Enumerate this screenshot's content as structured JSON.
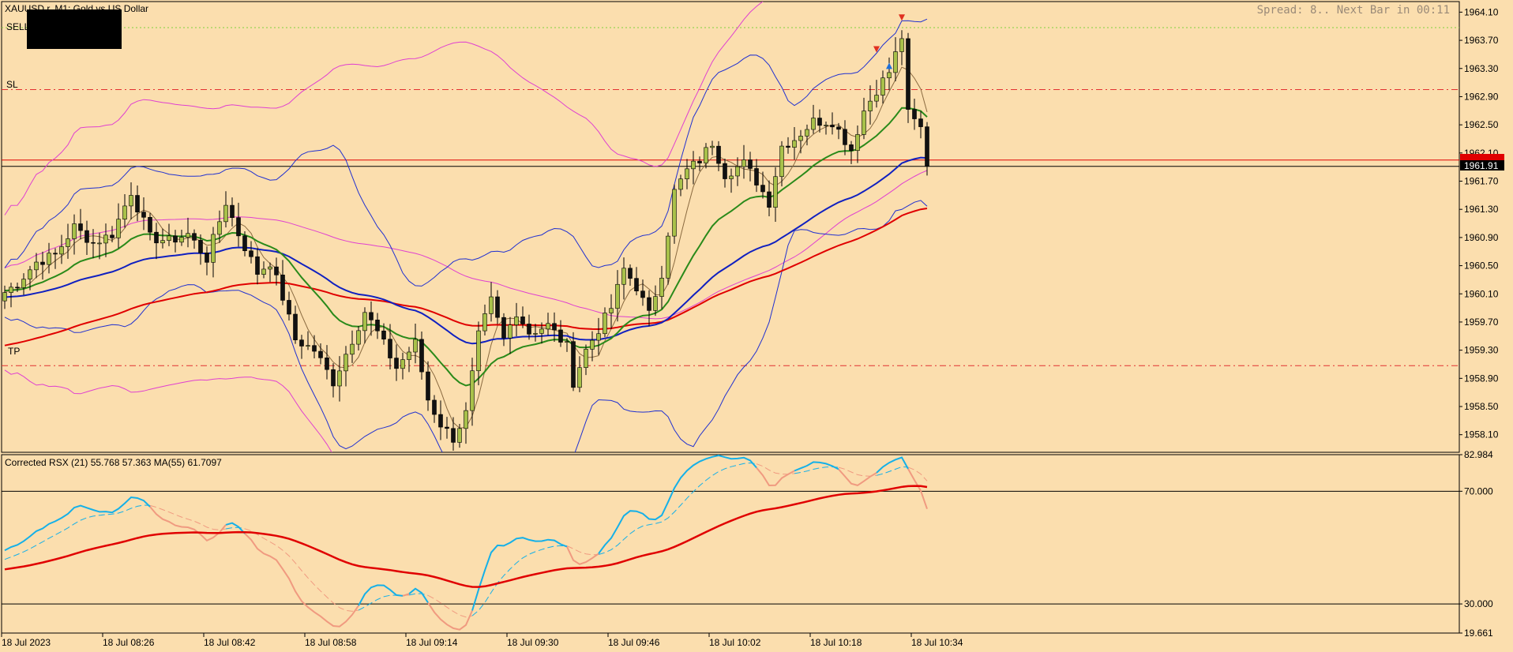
{
  "header": {
    "symbol_title": "XAUUSD.r, M1:  Gold vs US Dollar",
    "spread_text": "Spread: 8.. Next Bar in 00:11"
  },
  "levels": {
    "sell": {
      "label": "SELL",
      "price": 1963.88,
      "color": "#7FD23C"
    },
    "sl": {
      "label": "SL",
      "price": 1963.0,
      "color": "#E23030"
    },
    "tp": {
      "label": "TP",
      "price": 1959.08,
      "color": "#E23030"
    },
    "bid": {
      "price": 1962.0,
      "color": "#E00000"
    },
    "ask": {
      "price": 1961.91,
      "label": "1961.91",
      "color": "#000000"
    }
  },
  "colors": {
    "background": "#FBDEAE",
    "bull_candle": "#A8C14A",
    "bear_candle": "#111111",
    "sma_thin": "#8A6A40",
    "ma_green": "#2A8A1A",
    "ma_blue": "#1020C0",
    "ma_red": "#E00000",
    "bb_magenta": "#E040D0",
    "bb_blue": "#2030D0",
    "rsx_blue": "#15B0E8",
    "rsx_salmon": "#F09A80"
  },
  "chart_data": [
    {
      "type": "candlestick",
      "name": "XAUUSD.r M1",
      "ylim": [
        1957.85,
        1964.25
      ],
      "y_ticks": [
        "1964.10",
        "1963.70",
        "1963.30",
        "1962.90",
        "1962.50",
        "1962.10",
        "1961.70",
        "1961.30",
        "1960.90",
        "1960.50",
        "1960.10",
        "1959.70",
        "1959.30",
        "1958.90",
        "1958.50",
        "1958.10"
      ],
      "x_ticks": [
        "18 Jul 2023",
        "18 Jul 08:26",
        "18 Jul 08:42",
        "18 Jul 08:58",
        "18 Jul 09:14",
        "18 Jul 09:30",
        "18 Jul 09:46",
        "18 Jul 10:02",
        "18 Jul 10:18",
        "18 Jul 10:34"
      ],
      "arrows": [
        {
          "bar": 138,
          "price": 1963.55,
          "dir": "down",
          "color": "#E03020"
        },
        {
          "bar": 140,
          "price": 1963.36,
          "dir": "up",
          "color": "#1E6FD8"
        },
        {
          "bar": 142,
          "price": 1964.0,
          "dir": "down",
          "color": "#E03020"
        }
      ],
      "keypoints": [
        [
          0,
          1960.12
        ],
        [
          2,
          1960.25
        ],
        [
          5,
          1960.55
        ],
        [
          8,
          1960.65
        ],
        [
          11,
          1961.05
        ],
        [
          14,
          1960.82
        ],
        [
          17,
          1960.95
        ],
        [
          20,
          1961.55
        ],
        [
          23,
          1960.9
        ],
        [
          26,
          1960.85
        ],
        [
          29,
          1960.95
        ],
        [
          32,
          1960.6
        ],
        [
          35,
          1961.4
        ],
        [
          37,
          1960.95
        ],
        [
          40,
          1960.4
        ],
        [
          42,
          1960.55
        ],
        [
          44,
          1960.05
        ],
        [
          46,
          1959.45
        ],
        [
          49,
          1959.3
        ],
        [
          52,
          1958.85
        ],
        [
          55,
          1959.45
        ],
        [
          57,
          1959.85
        ],
        [
          59,
          1959.55
        ],
        [
          62,
          1959.05
        ],
        [
          65,
          1959.4
        ],
        [
          67,
          1958.6
        ],
        [
          69,
          1958.25
        ],
        [
          71,
          1958.05
        ],
        [
          73,
          1958.4
        ],
        [
          75,
          1959.5
        ],
        [
          77,
          1960.0
        ],
        [
          79,
          1959.45
        ],
        [
          81,
          1959.85
        ],
        [
          83,
          1959.55
        ],
        [
          86,
          1959.65
        ],
        [
          89,
          1959.35
        ],
        [
          90,
          1958.85
        ],
        [
          92,
          1959.3
        ],
        [
          94,
          1959.6
        ],
        [
          96,
          1959.9
        ],
        [
          98,
          1960.45
        ],
        [
          100,
          1960.2
        ],
        [
          102,
          1959.8
        ],
        [
          104,
          1960.4
        ],
        [
          106,
          1961.55
        ],
        [
          108,
          1961.85
        ],
        [
          110,
          1962.0
        ],
        [
          112,
          1962.25
        ],
        [
          114,
          1961.8
        ],
        [
          117,
          1961.95
        ],
        [
          119,
          1961.7
        ],
        [
          121,
          1961.4
        ],
        [
          123,
          1962.2
        ],
        [
          125,
          1962.3
        ],
        [
          128,
          1962.55
        ],
        [
          131,
          1962.55
        ],
        [
          134,
          1962.15
        ],
        [
          136,
          1962.7
        ],
        [
          138,
          1963.0
        ],
        [
          140,
          1963.25
        ],
        [
          142,
          1963.75
        ],
        [
          143,
          1962.65
        ],
        [
          145,
          1962.45
        ],
        [
          146,
          1961.9
        ]
      ],
      "price_labels": {
        "bid": "",
        "ask": "1961.91"
      }
    },
    {
      "type": "line",
      "name": "Corrected RSX (21) 55.768 57.363 MA(55) 61.7097",
      "ylim": [
        19.661,
        82.984
      ],
      "y_ticks": [
        "82.984",
        "70.000",
        "30.000",
        "19.661"
      ],
      "levels": [
        70,
        30
      ]
    }
  ]
}
